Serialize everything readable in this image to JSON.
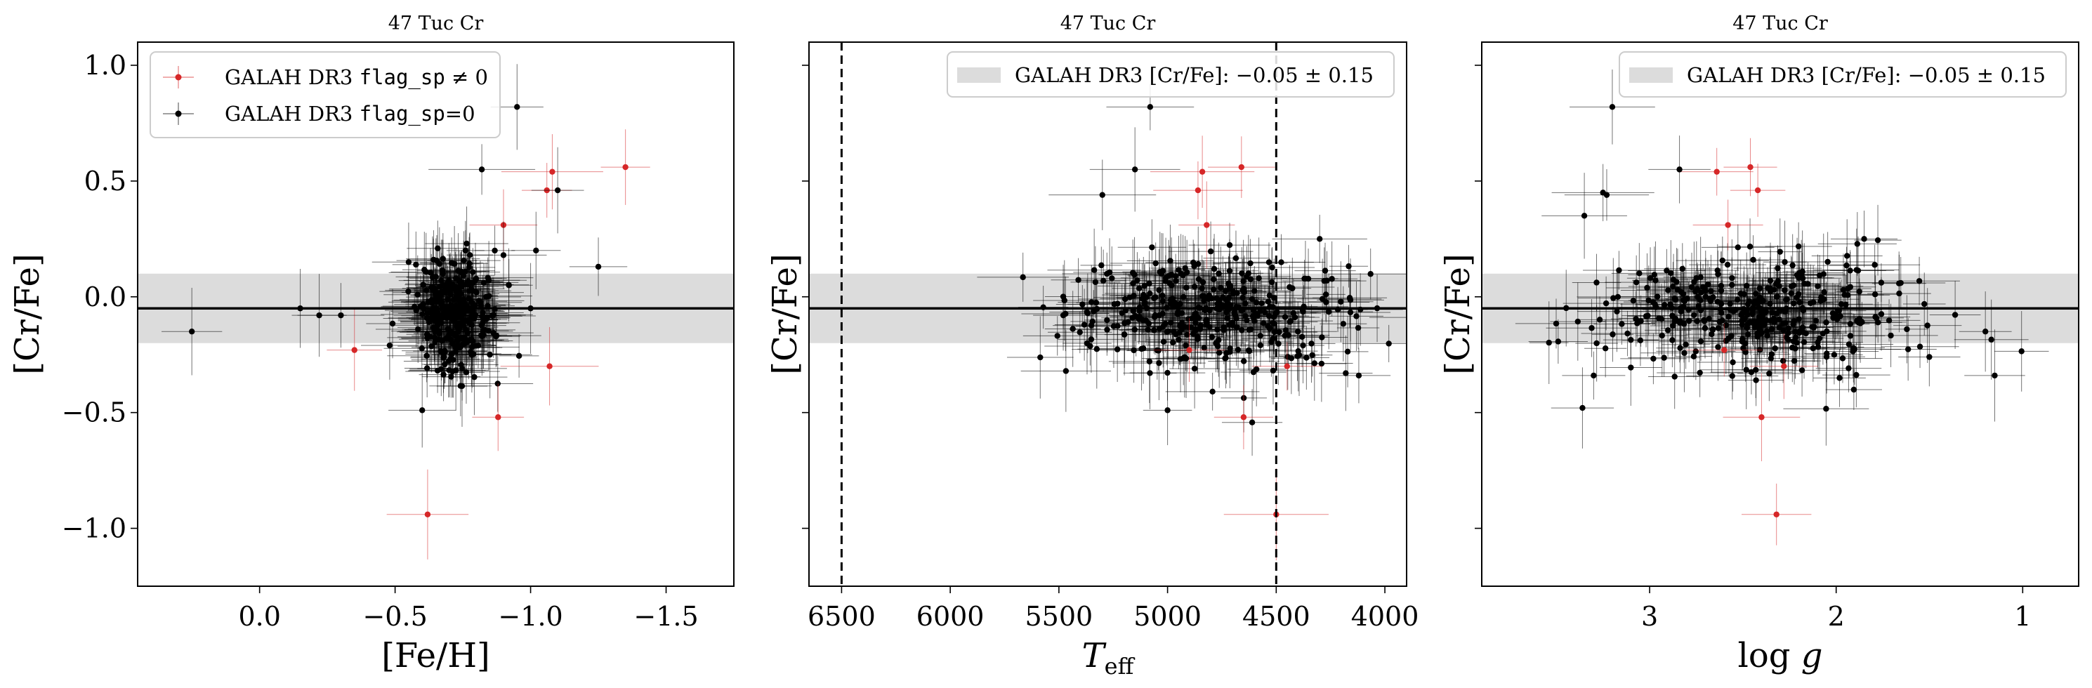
{
  "figure": {
    "panel_title": "47 Tuc Cr",
    "band": {
      "center": -0.05,
      "halfwidth": 0.15
    },
    "colors": {
      "flagged": "#d62728",
      "good": "#000000",
      "band": "#dcdcdc"
    }
  },
  "chart_data": [
    {
      "type": "scatter",
      "title": "47 Tuc Cr",
      "xlabel": "[Fe/H]",
      "ylabel": "[Cr/Fe]",
      "xlim": [
        0.45,
        -1.75
      ],
      "ylim": [
        -1.25,
        1.1
      ],
      "x_ticks": [
        0.0,
        -0.5,
        -1.0,
        -1.5
      ],
      "x_tick_labels": [
        "0.0",
        "−0.5",
        "−1.0",
        "−1.5"
      ],
      "y_ticks": [
        1.0,
        0.5,
        0.0,
        -0.5,
        -1.0
      ],
      "y_tick_labels": [
        "1.0",
        "0.5",
        "0.0",
        "−0.5",
        "−1.0"
      ],
      "hline": -0.05,
      "band": [
        -0.2,
        0.1
      ],
      "legend": {
        "location": "upper-left",
        "entries": [
          {
            "prefix": "GALAH DR3 ",
            "code": "flag_sp",
            "suffix": " ≠ 0",
            "color": "#d62728"
          },
          {
            "prefix": "GALAH DR3 ",
            "code": "flag_sp",
            "suffix": "=0",
            "color": "#000000"
          }
        ]
      },
      "series": [
        {
          "flag": "nonzero",
          "color": "#d62728",
          "points": [
            [
              -0.62,
              -0.94
            ],
            [
              -1.35,
              0.56
            ],
            [
              -1.08,
              0.54
            ],
            [
              -1.06,
              0.46
            ],
            [
              -0.88,
              -0.52
            ],
            [
              -1.07,
              -0.3
            ],
            [
              -0.35,
              -0.23
            ],
            [
              -0.9,
              0.31
            ]
          ]
        },
        {
          "flag": "zero",
          "color": "#000000",
          "points": [
            [
              0.25,
              -0.15
            ],
            [
              -0.95,
              0.82
            ],
            [
              -0.82,
              0.55
            ],
            [
              -1.1,
              0.46
            ],
            [
              -1.25,
              0.13
            ],
            [
              -1.02,
              0.2
            ],
            [
              -0.9,
              0.18
            ],
            [
              -0.6,
              -0.49
            ],
            [
              -0.48,
              -0.21
            ],
            [
              -0.3,
              -0.08
            ],
            [
              -0.15,
              -0.05
            ],
            [
              -0.22,
              -0.08
            ],
            [
              -1.0,
              -0.05
            ],
            [
              -0.92,
              0.05
            ],
            [
              -0.55,
              0.15
            ],
            [
              -0.85,
              -0.25
            ]
          ]
        }
      ],
      "cluster_scatter": {
        "x_center": -0.72,
        "y_center": -0.07,
        "x_sd": 0.07,
        "y_sd": 0.12,
        "n": 320
      }
    },
    {
      "type": "scatter",
      "title": "47 Tuc Cr",
      "xlabel": "T_eff",
      "ylabel": "[Cr/Fe]",
      "xlim": [
        6650,
        3900
      ],
      "ylim": [
        -1.25,
        1.1
      ],
      "x_ticks": [
        6500,
        6000,
        5500,
        5000,
        4500,
        4000
      ],
      "x_tick_labels": [
        "6500",
        "6000",
        "5500",
        "5000",
        "4500",
        "4000"
      ],
      "vlines": [
        6500,
        4500
      ],
      "hline": -0.05,
      "band": [
        -0.2,
        0.1
      ],
      "legend": {
        "location": "upper-right",
        "label_prefix": "GALAH DR3 [Cr/Fe]: ",
        "label_value": "−0.05 ± 0.15"
      },
      "series": [
        {
          "flag": "nonzero",
          "color": "#d62728",
          "points": [
            [
              4500,
              -0.94
            ],
            [
              4660,
              0.56
            ],
            [
              4840,
              0.54
            ],
            [
              4860,
              0.46
            ],
            [
              4650,
              -0.52
            ],
            [
              4450,
              -0.3
            ],
            [
              4900,
              -0.23
            ],
            [
              4820,
              0.31
            ]
          ]
        },
        {
          "flag": "zero",
          "color": "#000000",
          "points": [
            [
              5080,
              0.82
            ],
            [
              5150,
              0.55
            ],
            [
              5300,
              0.44
            ],
            [
              4120,
              -0.34
            ],
            [
              4180,
              -0.33
            ],
            [
              4300,
              0.25
            ],
            [
              5000,
              -0.49
            ],
            [
              5480,
              -0.08
            ],
            [
              4400,
              -0.15
            ]
          ]
        }
      ],
      "cluster_scatter": {
        "x_center": 4800,
        "y_center": -0.06,
        "x_sd": 330,
        "y_sd": 0.12,
        "n": 380
      }
    },
    {
      "type": "scatter",
      "title": "47 Tuc Cr",
      "xlabel": "log g",
      "ylabel": "[Cr/Fe]",
      "xlim": [
        3.9,
        0.7
      ],
      "ylim": [
        -1.25,
        1.1
      ],
      "x_ticks": [
        3,
        2,
        1
      ],
      "x_tick_labels": [
        "3",
        "2",
        "1"
      ],
      "hline": -0.05,
      "band": [
        -0.2,
        0.1
      ],
      "legend": {
        "location": "upper-right",
        "label_prefix": "GALAH DR3 [Cr/Fe]: ",
        "label_value": "−0.05 ± 0.15"
      },
      "series": [
        {
          "flag": "nonzero",
          "color": "#d62728",
          "points": [
            [
              2.32,
              -0.94
            ],
            [
              2.46,
              0.56
            ],
            [
              2.64,
              0.54
            ],
            [
              2.42,
              0.46
            ],
            [
              2.4,
              -0.52
            ],
            [
              2.28,
              -0.3
            ],
            [
              2.6,
              -0.23
            ],
            [
              2.58,
              0.31
            ]
          ]
        },
        {
          "flag": "zero",
          "color": "#000000",
          "points": [
            [
              3.2,
              0.82
            ],
            [
              2.84,
              0.55
            ],
            [
              3.23,
              0.44
            ],
            [
              3.25,
              0.45
            ],
            [
              3.35,
              0.35
            ],
            [
              3.36,
              -0.48
            ],
            [
              3.3,
              -0.34
            ],
            [
              1.15,
              -0.34
            ],
            [
              1.2,
              -0.15
            ],
            [
              1.85,
              0.25
            ]
          ]
        }
      ],
      "cluster_scatter": {
        "x_center": 2.4,
        "y_center": -0.07,
        "x_sd": 0.42,
        "y_sd": 0.11,
        "n": 380
      }
    }
  ]
}
